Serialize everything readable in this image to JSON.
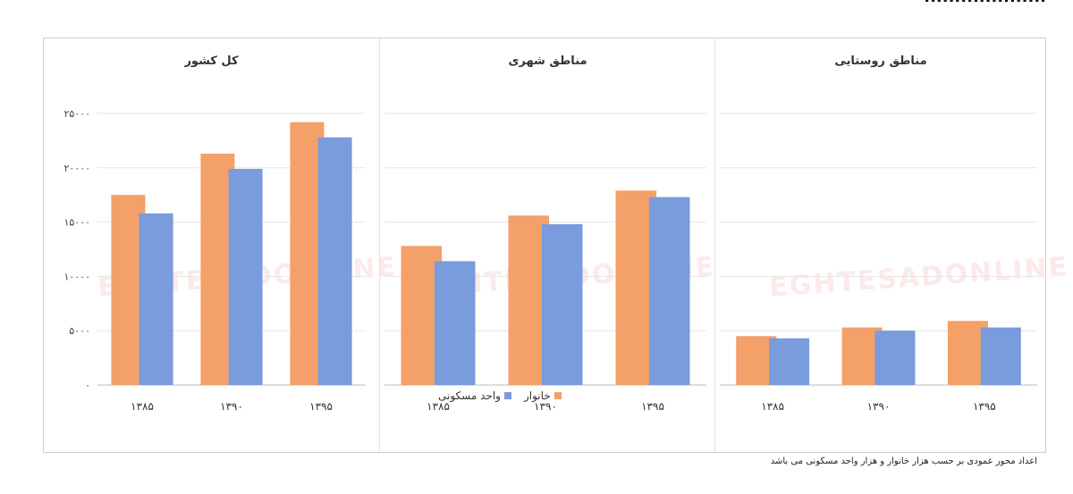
{
  "header": {
    "text": "...................."
  },
  "footnote": "اعداد محور عمودی بر حسب هزار خانوار و هزار واحد مسکونی می باشد",
  "watermark": "EGHTESADONLINE",
  "colors": {
    "households": "#f4a069",
    "units": "#7a9bdc",
    "grid": "#e6e6e6",
    "axis": "#bdbdbd"
  },
  "chart_data": [
    {
      "type": "bar",
      "title": "کل کشور",
      "categories": [
        "۱۳۸۵",
        "۱۳۹۰",
        "۱۳۹۵"
      ],
      "series": [
        {
          "name": "خانوار",
          "values": [
            17500,
            21300,
            24200
          ]
        },
        {
          "name": "واحد مسکونی",
          "values": [
            15800,
            19900,
            22800
          ]
        }
      ],
      "ylim": [
        0,
        25000
      ],
      "yticks": [
        "۰",
        "۵۰۰۰",
        "۱۰۰۰۰",
        "۱۵۰۰۰",
        "۲۰۰۰۰",
        "۲۵۰۰۰"
      ],
      "grid": true
    },
    {
      "type": "bar",
      "title": "مناطق شهری",
      "categories": [
        "۱۳۸۵",
        "۱۳۹۰",
        "۱۳۹۵"
      ],
      "series": [
        {
          "name": "خانوار",
          "values": [
            12800,
            15600,
            17900
          ]
        },
        {
          "name": "واحد مسکونی",
          "values": [
            11400,
            14800,
            17300
          ]
        }
      ],
      "ylim": [
        0,
        25000
      ],
      "grid": true
    },
    {
      "type": "bar",
      "title": "مناطق روستایی",
      "categories": [
        "۱۳۸۵",
        "۱۳۹۰",
        "۱۳۹۵"
      ],
      "series": [
        {
          "name": "خانوار",
          "values": [
            4500,
            5300,
            5900
          ]
        },
        {
          "name": "واحد مسکونی",
          "values": [
            4300,
            5000,
            5300
          ]
        }
      ],
      "ylim": [
        0,
        25000
      ],
      "grid": true
    }
  ]
}
